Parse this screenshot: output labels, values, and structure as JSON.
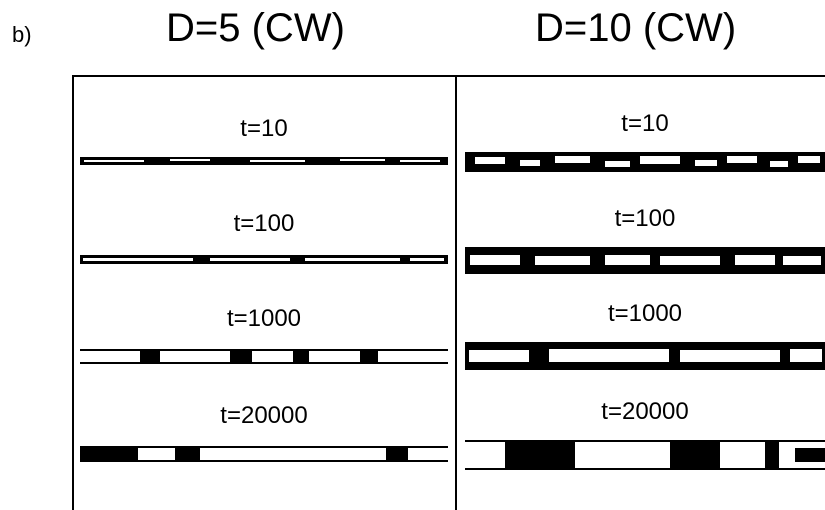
{
  "panel_label": "b)",
  "columns": [
    {
      "title": "D=5 (CW)",
      "rows": [
        {
          "time": "t=10"
        },
        {
          "time": "t=100"
        },
        {
          "time": "t=1000"
        },
        {
          "time": "t=20000"
        }
      ]
    },
    {
      "title": "D=10 (CW)",
      "rows": [
        {
          "time": "t=10"
        },
        {
          "time": "t=100"
        },
        {
          "time": "t=1000"
        },
        {
          "time": "t=20000"
        }
      ]
    }
  ]
}
